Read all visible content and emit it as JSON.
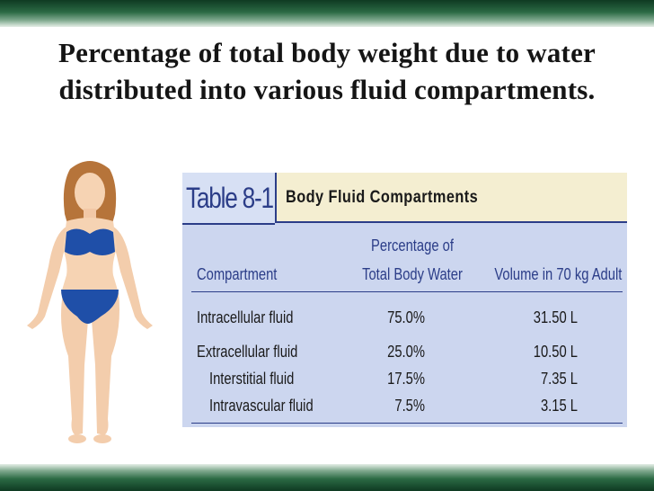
{
  "slide": {
    "title": "Percentage of total body weight due to water distributed into various fluid compartments."
  },
  "colors": {
    "band_dark": "#0f3a22",
    "table_blue": "#2b3d88",
    "table_bg": "#ccd6ef",
    "title_bg": "#f4eed1"
  },
  "figure": {
    "icon": "human-figure-icon"
  },
  "table": {
    "label": "Table 8-1",
    "title": "Body Fluid Compartments",
    "columns": {
      "compartment": "Compartment",
      "percentage_line1": "Percentage of",
      "percentage_line2": "Total Body Water",
      "volume": "Volume in 70 kg Adult"
    },
    "rows": [
      {
        "name": "Intracellular fluid",
        "percent": "75.0%",
        "volume": "31.50 L"
      },
      {
        "name": "Extracellular fluid",
        "percent": "25.0%",
        "volume": "10.50 L"
      },
      {
        "name": "Interstitial fluid",
        "percent": "17.5%",
        "volume": "7.35 L"
      },
      {
        "name": "Intravascular fluid",
        "percent": "7.5%",
        "volume": "3.15 L"
      }
    ]
  }
}
